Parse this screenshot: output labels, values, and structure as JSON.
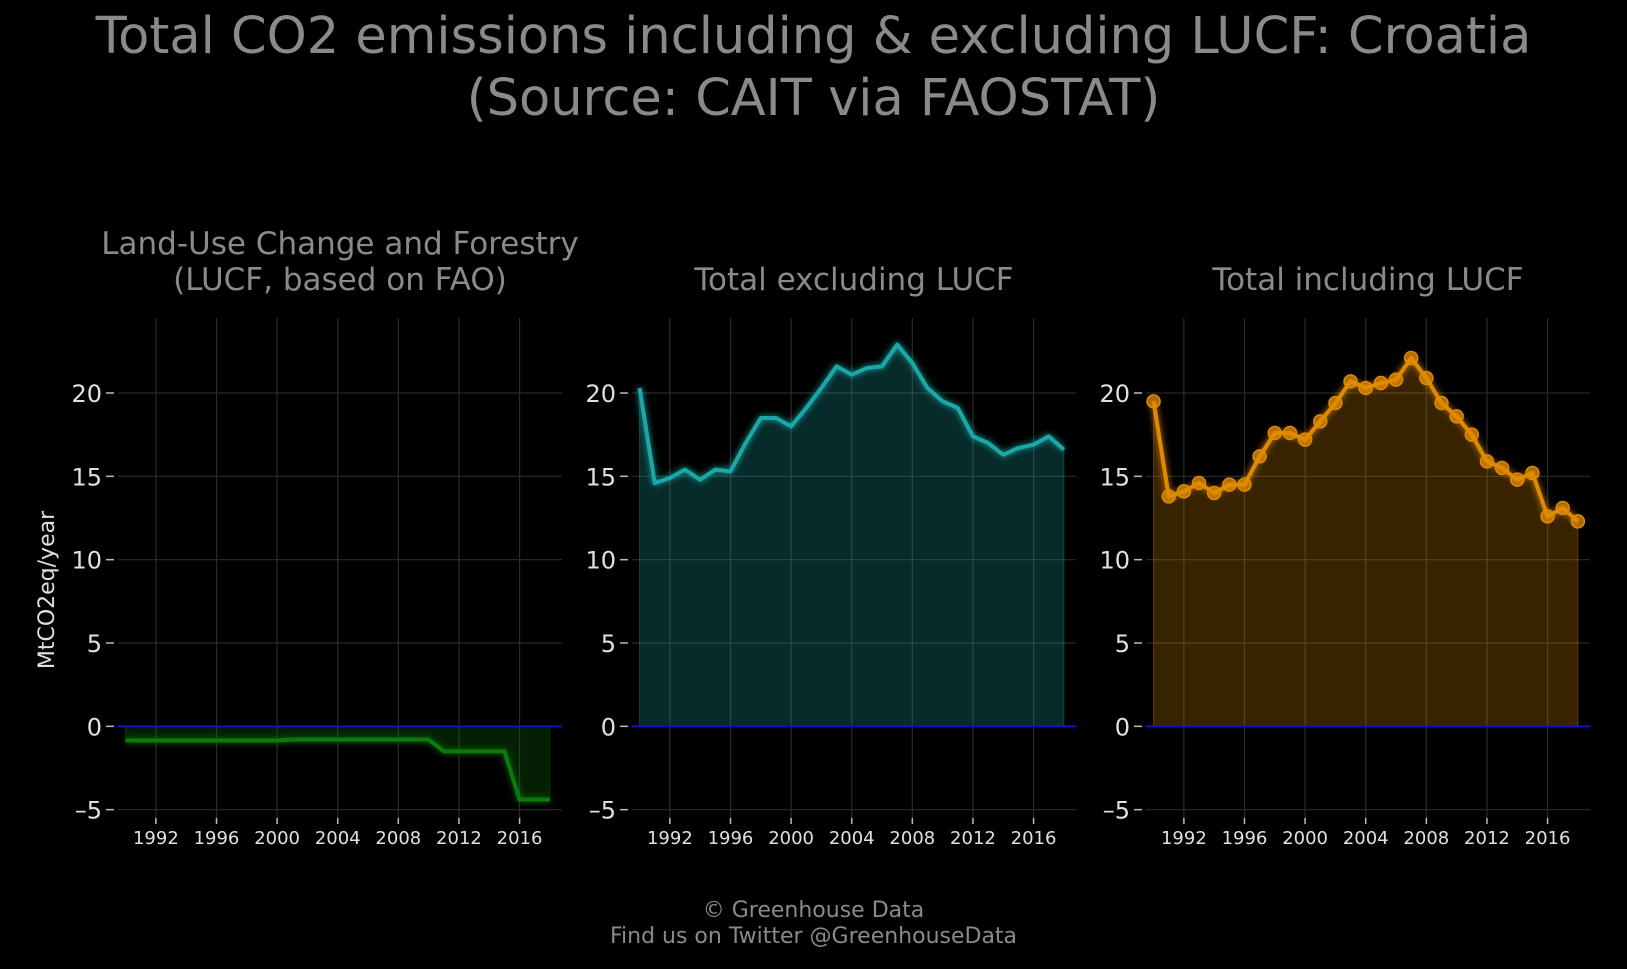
{
  "title_line1": "Total CO2 emissions including & excluding LUCF: Croatia",
  "title_line2": "(Source: CAIT via FAOSTAT)",
  "footer_line1": "© Greenhouse Data",
  "footer_line2": "Find us on Twitter @GreenhouseData",
  "colors": {
    "background": "#000000",
    "text": "#8a8a8a",
    "tick_text": "#e0e0e0",
    "grid": "#2b2b2b",
    "zero_line": "#1010c8",
    "lucf": "#0f7a0f",
    "excl": "#1aa7a7",
    "incl": "#e08a00"
  },
  "chart_data": [
    {
      "type": "area",
      "title": "Land-Use Change and Forestry\n(LUCF, based on FAO)",
      "ylabel": "MtCO2eq/year",
      "ylim": [
        -5.5,
        24.5
      ],
      "xlim": [
        1989.5,
        2018.8
      ],
      "yticks": [
        20,
        15,
        10,
        5,
        0,
        -5
      ],
      "ytick_labels": [
        "20",
        "15",
        "10",
        "5",
        "0",
        "–5"
      ],
      "xticks": [
        1992,
        1996,
        2000,
        2004,
        2008,
        2012,
        2016
      ],
      "grid": true,
      "color": "#0f7a0f",
      "markers": false,
      "x": [
        1990,
        1991,
        1992,
        1993,
        1994,
        1995,
        1996,
        1997,
        1998,
        1999,
        2000,
        2001,
        2002,
        2003,
        2004,
        2005,
        2006,
        2007,
        2008,
        2009,
        2010,
        2011,
        2012,
        2013,
        2014,
        2015,
        2016,
        2017,
        2018
      ],
      "values": [
        -0.85,
        -0.85,
        -0.85,
        -0.85,
        -0.85,
        -0.85,
        -0.85,
        -0.85,
        -0.85,
        -0.85,
        -0.85,
        -0.8,
        -0.8,
        -0.8,
        -0.8,
        -0.8,
        -0.8,
        -0.8,
        -0.8,
        -0.8,
        -0.8,
        -1.5,
        -1.5,
        -1.5,
        -1.5,
        -1.5,
        -4.4,
        -4.4,
        -4.4
      ]
    },
    {
      "type": "area",
      "title": "Total excluding LUCF",
      "ylabel": "",
      "ylim": [
        -5.5,
        24.5
      ],
      "xlim": [
        1989.5,
        2018.8
      ],
      "yticks": [
        20,
        15,
        10,
        5,
        0,
        -5
      ],
      "ytick_labels": [
        "20",
        "15",
        "10",
        "5",
        "0",
        "–5"
      ],
      "xticks": [
        1992,
        1996,
        2000,
        2004,
        2008,
        2012,
        2016
      ],
      "grid": true,
      "color": "#1aa7a7",
      "markers": false,
      "x": [
        1990,
        1991,
        1992,
        1993,
        1994,
        1995,
        1996,
        1997,
        1998,
        1999,
        2000,
        2001,
        2002,
        2003,
        2004,
        2005,
        2006,
        2007,
        2008,
        2009,
        2010,
        2011,
        2012,
        2013,
        2014,
        2015,
        2016,
        2017,
        2018
      ],
      "values": [
        20.3,
        14.6,
        14.9,
        15.4,
        14.8,
        15.4,
        15.3,
        17.0,
        18.5,
        18.5,
        18.0,
        19.1,
        20.3,
        21.6,
        21.1,
        21.5,
        21.6,
        22.9,
        21.8,
        20.3,
        19.5,
        19.1,
        17.4,
        17.0,
        16.3,
        16.7,
        16.9,
        17.4,
        16.6
      ]
    },
    {
      "type": "area",
      "title": "Total including LUCF",
      "ylabel": "",
      "ylim": [
        -5.5,
        24.5
      ],
      "xlim": [
        1989.5,
        2018.8
      ],
      "yticks": [
        20,
        15,
        10,
        5,
        0,
        -5
      ],
      "ytick_labels": [
        "20",
        "15",
        "10",
        "5",
        "0",
        "–5"
      ],
      "xticks": [
        1992,
        1996,
        2000,
        2004,
        2008,
        2012,
        2016
      ],
      "grid": true,
      "color": "#e08a00",
      "markers": true,
      "x": [
        1990,
        1991,
        1992,
        1993,
        1994,
        1995,
        1996,
        1997,
        1998,
        1999,
        2000,
        2001,
        2002,
        2003,
        2004,
        2005,
        2006,
        2007,
        2008,
        2009,
        2010,
        2011,
        2012,
        2013,
        2014,
        2015,
        2016,
        2017,
        2018
      ],
      "values": [
        19.5,
        13.8,
        14.1,
        14.6,
        14.0,
        14.5,
        14.5,
        16.2,
        17.6,
        17.6,
        17.2,
        18.3,
        19.4,
        20.7,
        20.3,
        20.6,
        20.8,
        22.1,
        20.9,
        19.4,
        18.6,
        17.5,
        15.9,
        15.5,
        14.8,
        15.2,
        12.6,
        13.1,
        12.3
      ]
    }
  ]
}
